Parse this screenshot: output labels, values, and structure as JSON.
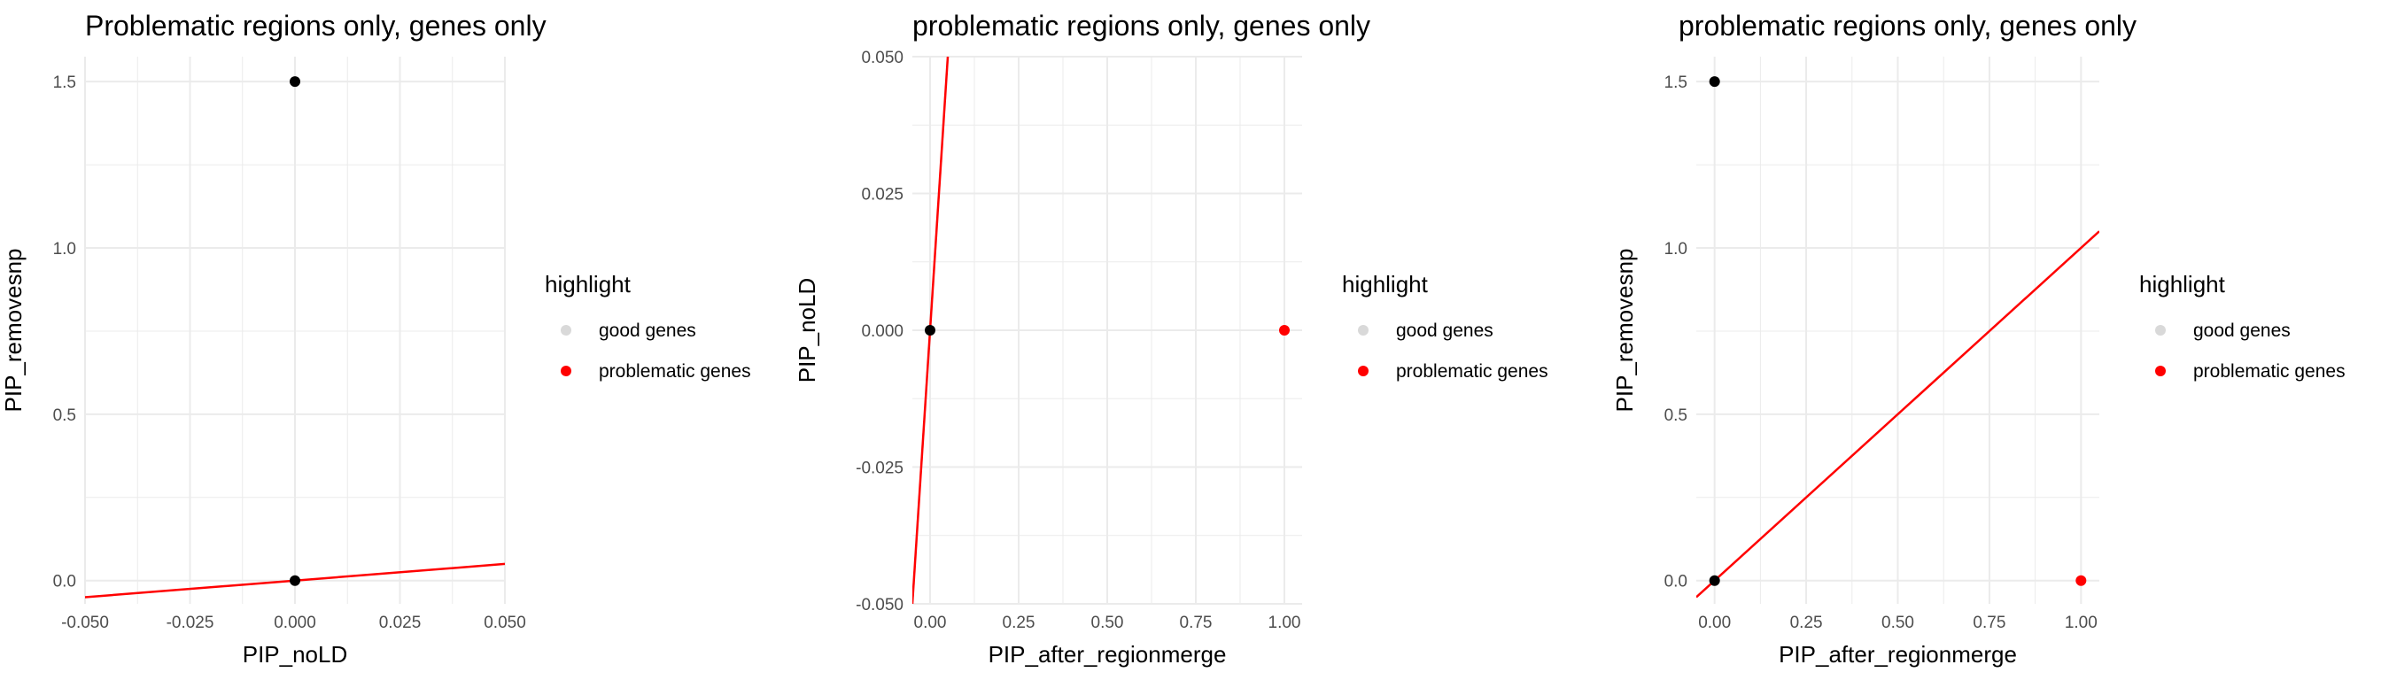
{
  "legend": {
    "title": "highlight",
    "items": [
      {
        "label": "good genes",
        "color": "#d9d9d9"
      },
      {
        "label": "problematic genes",
        "color": "#ff0000"
      }
    ]
  },
  "colors": {
    "point_dark": "#000000",
    "line": "#ff0000",
    "grid": "#ebebeb"
  },
  "chart_data": [
    {
      "type": "scatter",
      "title": "Problematic regions only, genes only",
      "xlabel": "PIP_noLD",
      "ylabel": "PIP_removesnp",
      "xlim": [
        -0.05,
        0.05
      ],
      "ylim": [
        -0.07,
        1.575
      ],
      "x_ticks": [
        -0.05,
        -0.025,
        0,
        0.025,
        0.05
      ],
      "x_tick_labels": [
        "-0.050",
        "-0.025",
        "0.000",
        "0.025",
        "0.050"
      ],
      "y_ticks": [
        0,
        0.5,
        1,
        1.5
      ],
      "y_tick_labels": [
        "0.0",
        "0.5",
        "1.0",
        "1.5"
      ],
      "grid": true,
      "points": [
        {
          "x": 0,
          "y": 1.5,
          "series": "good genes"
        },
        {
          "x": 0,
          "y": 0,
          "series": "good genes"
        }
      ],
      "reference_line": {
        "slope": 1,
        "intercept": 0
      }
    },
    {
      "type": "scatter",
      "title": "problematic regions only, genes only",
      "xlabel": "PIP_after_regionmerge",
      "ylabel": "PIP_noLD",
      "xlim": [
        -0.05,
        1.05
      ],
      "ylim": [
        -0.05,
        0.05
      ],
      "x_ticks": [
        0,
        0.25,
        0.5,
        0.75,
        1
      ],
      "x_tick_labels": [
        "0.00",
        "0.25",
        "0.50",
        "0.75",
        "1.00"
      ],
      "y_ticks": [
        -0.05,
        -0.025,
        0,
        0.025,
        0.05
      ],
      "y_tick_labels": [
        "-0.050",
        "-0.025",
        "0.000",
        "0.025",
        "0.050"
      ],
      "grid": true,
      "points": [
        {
          "x": 0,
          "y": 0,
          "series": "good genes"
        },
        {
          "x": 1,
          "y": 0,
          "series": "problematic genes"
        }
      ],
      "reference_line": {
        "slope": 1,
        "intercept": 0
      }
    },
    {
      "type": "scatter",
      "title": "problematic regions only, genes only",
      "xlabel": "PIP_after_regionmerge",
      "ylabel": "PIP_removesnp",
      "xlim": [
        -0.05,
        1.05
      ],
      "ylim": [
        -0.07,
        1.575
      ],
      "x_ticks": [
        0,
        0.25,
        0.5,
        0.75,
        1
      ],
      "x_tick_labels": [
        "0.00",
        "0.25",
        "0.50",
        "0.75",
        "1.00"
      ],
      "y_ticks": [
        0,
        0.5,
        1,
        1.5
      ],
      "y_tick_labels": [
        "0.0",
        "0.5",
        "1.0",
        "1.5"
      ],
      "grid": true,
      "points": [
        {
          "x": 0,
          "y": 1.5,
          "series": "good genes"
        },
        {
          "x": 0,
          "y": 0,
          "series": "good genes"
        },
        {
          "x": 1,
          "y": 0,
          "series": "problematic genes"
        }
      ],
      "reference_line": {
        "slope": 1,
        "intercept": 0
      }
    }
  ]
}
